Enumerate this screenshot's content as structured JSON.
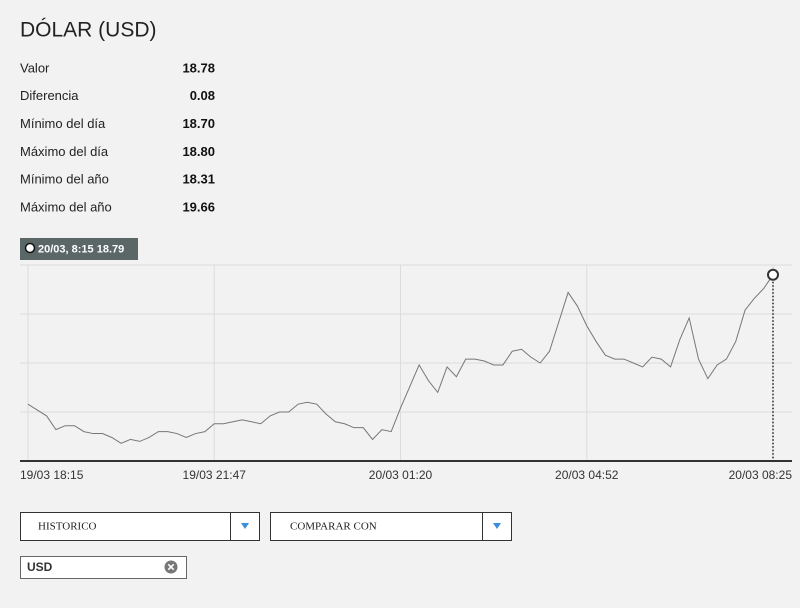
{
  "header": {
    "title": "DÓLAR (USD)"
  },
  "stats": [
    {
      "label": "Valor",
      "value": "18.78"
    },
    {
      "label": "Diferencia",
      "value": "0.08"
    },
    {
      "label": "Mínimo del día",
      "value": "18.70"
    },
    {
      "label": "Máximo del día",
      "value": "18.80"
    },
    {
      "label": "Mínimo del año",
      "value": "18.31"
    },
    {
      "label": "Máximo del año",
      "value": "19.66"
    }
  ],
  "chart_data": {
    "type": "line",
    "tooltip": {
      "date": "20/03, 8:15",
      "value": "18.79"
    },
    "categories": [
      "19/03 18:15",
      null,
      null,
      null,
      null,
      null,
      null,
      null,
      null,
      null,
      null,
      null,
      null,
      null,
      null,
      null,
      null,
      null,
      null,
      null,
      "19/03 21:47",
      null,
      null,
      null,
      null,
      null,
      null,
      null,
      null,
      null,
      null,
      null,
      null,
      null,
      null,
      null,
      null,
      null,
      null,
      null,
      "20/03 01:20",
      null,
      null,
      null,
      null,
      null,
      null,
      null,
      null,
      null,
      null,
      null,
      null,
      null,
      null,
      null,
      null,
      null,
      null,
      null,
      "20/03 04:52",
      null,
      null,
      null,
      null,
      null,
      null,
      null,
      null,
      null,
      null,
      null,
      null,
      null,
      null,
      null,
      null,
      null,
      null,
      null,
      "20/03 08:25"
    ],
    "values": [
      18.724,
      18.721,
      18.718,
      18.711,
      18.713,
      18.713,
      18.71,
      18.709,
      18.709,
      18.707,
      18.704,
      18.706,
      18.705,
      18.707,
      18.71,
      18.71,
      18.709,
      18.707,
      18.709,
      18.71,
      18.714,
      18.714,
      18.715,
      18.716,
      18.715,
      18.714,
      18.718,
      18.72,
      18.72,
      18.724,
      18.725,
      18.724,
      18.719,
      18.715,
      18.714,
      18.712,
      18.712,
      18.706,
      18.711,
      18.71,
      18.722,
      18.733,
      18.744,
      18.736,
      18.73,
      18.743,
      18.738,
      18.747,
      18.747,
      18.746,
      18.744,
      18.744,
      18.751,
      18.752,
      18.748,
      18.745,
      18.751,
      18.766,
      18.781,
      18.774,
      18.764,
      18.756,
      18.749,
      18.747,
      18.747,
      18.745,
      18.743,
      18.748,
      18.747,
      18.743,
      18.757,
      18.768,
      18.747,
      18.737,
      18.744,
      18.747,
      18.756,
      18.772,
      18.778,
      18.783,
      18.79
    ],
    "color": "#777777",
    "ylim": [
      18.695,
      18.795
    ]
  },
  "controls": {
    "historic": "HISTORICO",
    "compare": "COMPARAR CON",
    "tag": "USD"
  }
}
